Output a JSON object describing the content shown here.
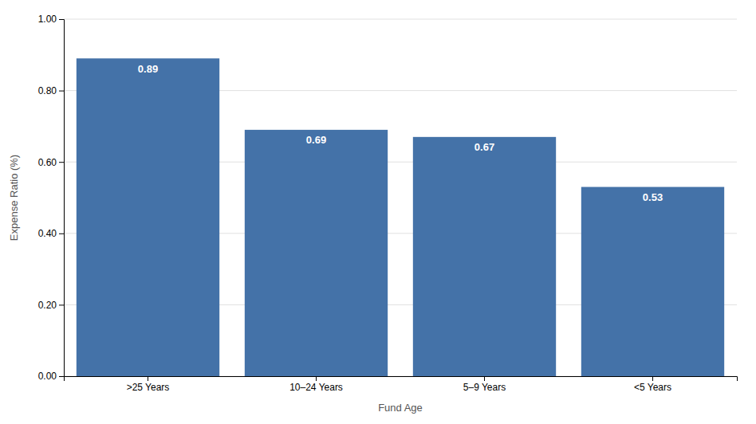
{
  "chart_data": {
    "type": "bar",
    "categories": [
      ">25 Years",
      "10–24 Years",
      "5–9 Years",
      "<5 Years"
    ],
    "values": [
      0.89,
      0.69,
      0.67,
      0.53
    ],
    "color": "#4472a8",
    "xlabel": "Fund Age",
    "ylabel": "Expense Ratio (%)",
    "ylim": [
      0.0,
      1.0
    ],
    "yticks": [
      {
        "value": 0.0,
        "label": "0.00"
      },
      {
        "value": 0.2,
        "label": "0.20"
      },
      {
        "value": 0.4,
        "label": "0.40"
      },
      {
        "value": 0.6,
        "label": "0.60"
      },
      {
        "value": 0.8,
        "label": "0.80"
      },
      {
        "value": 1.0,
        "label": "1.00"
      }
    ],
    "grid": true,
    "data_labels": true
  }
}
